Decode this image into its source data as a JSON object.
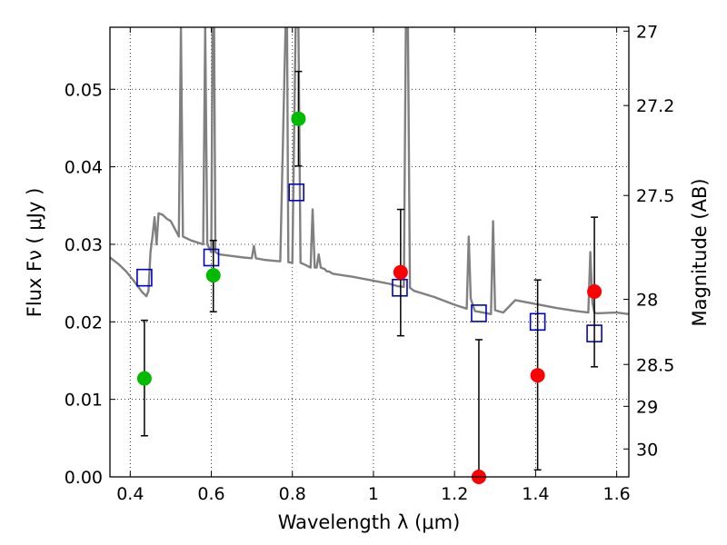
{
  "chart_data": {
    "type": "scatter",
    "xlabel": "Wavelength  λ (μm)",
    "ylabel": "Flux  Fν  ( μJy )",
    "ylabel_right": "Magnitude (AB)",
    "xlim": [
      0.35,
      1.63
    ],
    "ylim": [
      0.0,
      0.058
    ],
    "grid": true,
    "grid_style": "dotted",
    "x_ticks": [
      0.4,
      0.6,
      0.8,
      1.0,
      1.2,
      1.4,
      1.6
    ],
    "x_tick_labels": [
      "0.4",
      "0.6",
      "0.8",
      "1",
      "1.2",
      "1.4",
      "1.6"
    ],
    "y_ticks": [
      0.0,
      0.01,
      0.02,
      0.03,
      0.04,
      0.05
    ],
    "y_tick_labels": [
      "0.00",
      "0.01",
      "0.02",
      "0.03",
      "0.04",
      "0.05"
    ],
    "right_ticks": [
      {
        "label": "27",
        "flux": 0.0575
      },
      {
        "label": "27.2",
        "flux": 0.0479
      },
      {
        "label": "27.5",
        "flux": 0.0363
      },
      {
        "label": "28",
        "flux": 0.0229
      },
      {
        "label": "28.5",
        "flux": 0.0145
      },
      {
        "label": "29",
        "flux": 0.0091
      },
      {
        "label": "30",
        "flux": 0.0036
      }
    ],
    "colors": {
      "model": "#808080",
      "observed_green": "#00bb00",
      "observed_red": "#ff0000",
      "model_photometry": "#0000cc",
      "errorbar": "#000000"
    },
    "series": [
      {
        "role": "model_spectrum",
        "style": "line",
        "x": [
          0.35,
          0.37,
          0.39,
          0.41,
          0.42,
          0.43,
          0.44,
          0.445,
          0.45,
          0.455,
          0.46,
          0.465,
          0.47,
          0.48,
          0.49,
          0.5,
          0.51,
          0.52,
          0.525,
          0.53,
          0.55,
          0.58,
          0.585,
          0.59,
          0.6,
          0.603,
          0.607,
          0.61,
          0.62,
          0.65,
          0.68,
          0.7,
          0.705,
          0.71,
          0.73,
          0.75,
          0.77,
          0.783,
          0.787,
          0.79,
          0.8,
          0.808,
          0.815,
          0.82,
          0.83,
          0.845,
          0.85,
          0.855,
          0.86,
          0.865,
          0.87,
          0.88,
          0.885,
          0.89,
          0.9,
          0.95,
          1.0,
          1.04,
          1.06,
          1.075,
          1.08,
          1.082,
          1.085,
          1.09,
          1.1,
          1.15,
          1.2,
          1.23,
          1.235,
          1.24,
          1.25,
          1.27,
          1.29,
          1.295,
          1.3,
          1.32,
          1.35,
          1.4,
          1.45,
          1.5,
          1.53,
          1.535,
          1.54,
          1.545,
          1.55,
          1.6,
          1.63
        ],
        "y": [
          0.0283,
          0.0275,
          0.0265,
          0.0252,
          0.0245,
          0.0238,
          0.0233,
          0.024,
          0.029,
          0.031,
          0.0335,
          0.03,
          0.034,
          0.0338,
          0.0333,
          0.033,
          0.032,
          0.031,
          0.058,
          0.031,
          0.0305,
          0.03,
          0.058,
          0.03,
          0.029,
          0.058,
          0.058,
          0.029,
          0.0287,
          0.0285,
          0.0283,
          0.0282,
          0.0298,
          0.0282,
          0.028,
          0.0279,
          0.0278,
          0.058,
          0.058,
          0.0277,
          0.0276,
          0.058,
          0.058,
          0.0276,
          0.0274,
          0.027,
          0.0345,
          0.027,
          0.027,
          0.0287,
          0.027,
          0.0268,
          0.0265,
          0.0265,
          0.0262,
          0.0258,
          0.0253,
          0.0249,
          0.0246,
          0.0245,
          0.058,
          0.058,
          0.058,
          0.0244,
          0.024,
          0.0232,
          0.0222,
          0.0217,
          0.031,
          0.023,
          0.0214,
          0.0212,
          0.021,
          0.033,
          0.0215,
          0.0212,
          0.0228,
          0.0223,
          0.0218,
          0.0214,
          0.0212,
          0.029,
          0.0225,
          0.0212,
          0.0211,
          0.0212,
          0.021
        ]
      },
      {
        "role": "model_photometry",
        "style": "open_square",
        "x": [
          0.435,
          0.6,
          0.81,
          1.065,
          1.26,
          1.405,
          1.545
        ],
        "y": [
          0.0257,
          0.0283,
          0.0367,
          0.0244,
          0.0211,
          0.02,
          0.0185
        ]
      },
      {
        "role": "observed",
        "style": "filled_circle",
        "x": [
          0.435,
          0.605,
          0.815,
          1.067,
          1.26,
          1.405,
          1.545
        ],
        "y": [
          0.0127,
          0.026,
          0.0462,
          0.0264,
          0.0,
          0.0131,
          0.0239
        ],
        "yerr_low": [
          0.0053,
          0.0213,
          0.0401,
          0.0182,
          0.0,
          0.0009,
          0.0142
        ],
        "yerr_high": [
          0.0202,
          0.0305,
          0.0523,
          0.0345,
          0.0177,
          0.0254,
          0.0335
        ],
        "point_colors": [
          "observed_green",
          "observed_green",
          "observed_green",
          "observed_red",
          "observed_red",
          "observed_red",
          "observed_red"
        ]
      }
    ]
  }
}
